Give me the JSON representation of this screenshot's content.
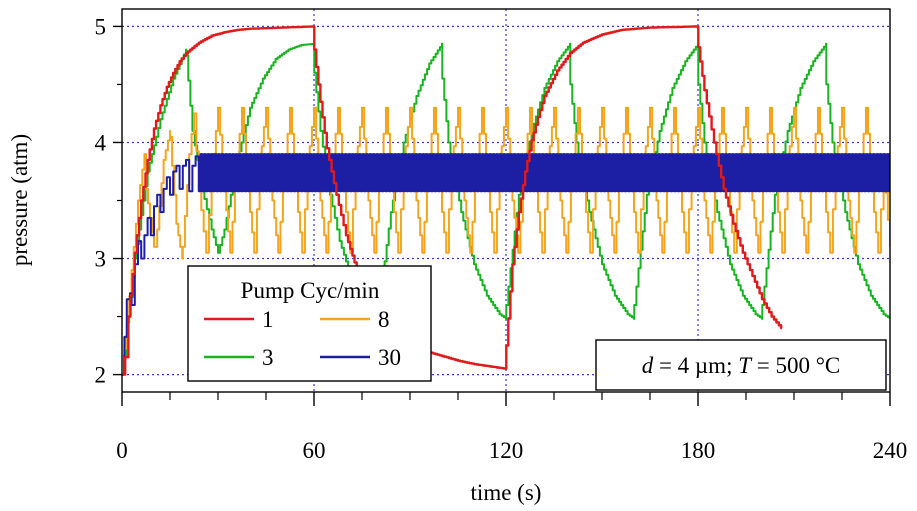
{
  "chart_data": {
    "type": "line",
    "xlabel": "time (s)",
    "ylabel": "pressure (atm)",
    "xlim": [
      0,
      240
    ],
    "ylim": [
      1.85,
      5.15
    ],
    "x_ticks": [
      "0",
      "60",
      "120",
      "180",
      "240"
    ],
    "x_tick_values": [
      0,
      60,
      120,
      180,
      240
    ],
    "y_ticks": [
      "2",
      "3",
      "4",
      "5"
    ],
    "y_tick_values": [
      2,
      3,
      4,
      5
    ],
    "grid": "dotted",
    "legend": {
      "title": "Pump Cyc/min",
      "placement": "bottom-left"
    },
    "annotation": {
      "d_var": "d",
      "d_val": " = 4 µm; ",
      "t_var": "T",
      "t_val": " = 500 °C"
    },
    "series": [
      {
        "name": "1",
        "color": "#e0191b",
        "points": [
          [
            0,
            2.0
          ],
          [
            1,
            2.15
          ],
          [
            2,
            2.5
          ],
          [
            4,
            3.05
          ],
          [
            6,
            3.5
          ],
          [
            8,
            3.85
          ],
          [
            10,
            4.12
          ],
          [
            12,
            4.32
          ],
          [
            14,
            4.48
          ],
          [
            16,
            4.6
          ],
          [
            18,
            4.7
          ],
          [
            20,
            4.77
          ],
          [
            24,
            4.86
          ],
          [
            28,
            4.92
          ],
          [
            32,
            4.95
          ],
          [
            36,
            4.97
          ],
          [
            40,
            4.98
          ],
          [
            50,
            4.99
          ],
          [
            60,
            5.0
          ],
          [
            60.1,
            4.8
          ],
          [
            62,
            4.35
          ],
          [
            64,
            3.95
          ],
          [
            67,
            3.55
          ],
          [
            70,
            3.2
          ],
          [
            74,
            2.85
          ],
          [
            78,
            2.6
          ],
          [
            82,
            2.43
          ],
          [
            86,
            2.33
          ],
          [
            90,
            2.26
          ],
          [
            95,
            2.2
          ],
          [
            100,
            2.16
          ],
          [
            105,
            2.12
          ],
          [
            110,
            2.09
          ],
          [
            115,
            2.07
          ],
          [
            119.9,
            2.05
          ],
          [
            120,
            2.05
          ],
          [
            120.1,
            2.25
          ],
          [
            122,
            2.95
          ],
          [
            124,
            3.4
          ],
          [
            126,
            3.75
          ],
          [
            128,
            4.02
          ],
          [
            130,
            4.22
          ],
          [
            132,
            4.4
          ],
          [
            136,
            4.62
          ],
          [
            140,
            4.77
          ],
          [
            144,
            4.86
          ],
          [
            150,
            4.93
          ],
          [
            156,
            4.97
          ],
          [
            165,
            4.99
          ],
          [
            180,
            5.0
          ],
          [
            180.1,
            4.82
          ],
          [
            182,
            4.45
          ],
          [
            185,
            4.0
          ],
          [
            188,
            3.6
          ],
          [
            191,
            3.3
          ],
          [
            194,
            3.05
          ],
          [
            197,
            2.85
          ],
          [
            200,
            2.65
          ],
          [
            203,
            2.5
          ],
          [
            206,
            2.4
          ],
          [
            206.2,
            2.4
          ]
        ]
      },
      {
        "name": "3",
        "color": "#18b31f",
        "points": [
          [
            0,
            2.0
          ],
          [
            4,
            3.0
          ],
          [
            8,
            3.75
          ],
          [
            12,
            4.2
          ],
          [
            16,
            4.55
          ],
          [
            20,
            4.8
          ],
          [
            20.1,
            4.75
          ],
          [
            22,
            4.1
          ],
          [
            25,
            3.6
          ],
          [
            28,
            3.25
          ],
          [
            30,
            3.05
          ],
          [
            32,
            3.25
          ],
          [
            36,
            3.85
          ],
          [
            40,
            4.3
          ],
          [
            44,
            4.55
          ],
          [
            48,
            4.72
          ],
          [
            52,
            4.8
          ],
          [
            56,
            4.84
          ],
          [
            60,
            4.85
          ],
          [
            60.1,
            4.6
          ],
          [
            62,
            4.1
          ],
          [
            65,
            3.55
          ],
          [
            68,
            3.15
          ],
          [
            72,
            2.8
          ],
          [
            76,
            2.55
          ],
          [
            80,
            2.45
          ],
          [
            80.1,
            2.55
          ],
          [
            84,
            3.4
          ],
          [
            88,
            4.0
          ],
          [
            92,
            4.4
          ],
          [
            96,
            4.68
          ],
          [
            100,
            4.85
          ],
          [
            100.1,
            4.55
          ],
          [
            102,
            4.0
          ],
          [
            106,
            3.4
          ],
          [
            110,
            2.95
          ],
          [
            114,
            2.68
          ],
          [
            118,
            2.52
          ],
          [
            120,
            2.48
          ],
          [
            120.1,
            2.6
          ],
          [
            124,
            3.55
          ],
          [
            128,
            4.1
          ],
          [
            132,
            4.47
          ],
          [
            136,
            4.7
          ],
          [
            140,
            4.85
          ],
          [
            140.1,
            4.5
          ],
          [
            142,
            4.0
          ],
          [
            146,
            3.4
          ],
          [
            150,
            2.95
          ],
          [
            154,
            2.68
          ],
          [
            158,
            2.52
          ],
          [
            160,
            2.48
          ],
          [
            160.1,
            2.6
          ],
          [
            164,
            3.55
          ],
          [
            168,
            4.1
          ],
          [
            172,
            4.47
          ],
          [
            176,
            4.7
          ],
          [
            180,
            4.85
          ],
          [
            180.1,
            4.5
          ],
          [
            182,
            4.0
          ],
          [
            186,
            3.4
          ],
          [
            190,
            2.95
          ],
          [
            194,
            2.68
          ],
          [
            198,
            2.52
          ],
          [
            200,
            2.48
          ],
          [
            200.1,
            2.6
          ],
          [
            204,
            3.55
          ],
          [
            208,
            4.1
          ],
          [
            212,
            4.47
          ],
          [
            216,
            4.7
          ],
          [
            220,
            4.85
          ],
          [
            220.1,
            4.5
          ],
          [
            222,
            4.0
          ],
          [
            226,
            3.4
          ],
          [
            230,
            2.95
          ],
          [
            234,
            2.68
          ],
          [
            238,
            2.52
          ],
          [
            240,
            2.48
          ]
        ]
      },
      {
        "name": "8",
        "color": "#f2a51e",
        "points": [
          [
            0,
            2.0
          ],
          [
            3,
            2.9
          ],
          [
            5,
            3.5
          ],
          [
            7,
            3.9
          ],
          [
            7.5,
            3.6
          ],
          [
            10,
            3.1
          ],
          [
            11,
            3.25
          ],
          [
            13,
            3.85
          ],
          [
            15,
            4.1
          ],
          [
            15,
            4.05
          ],
          [
            17,
            3.3
          ],
          [
            18.8,
            3.0
          ],
          [
            19,
            3.1
          ],
          [
            21,
            3.9
          ],
          [
            22.5,
            4.25
          ],
          [
            24,
            3.6
          ],
          [
            26.3,
            3.05
          ],
          [
            28,
            3.7
          ],
          [
            30,
            4.3
          ],
          [
            32,
            3.6
          ],
          [
            33.8,
            3.05
          ],
          [
            36,
            3.85
          ],
          [
            37.5,
            4.3
          ],
          [
            40,
            3.4
          ],
          [
            41.3,
            3.05
          ],
          [
            43,
            3.8
          ],
          [
            45,
            4.3
          ],
          [
            47,
            3.5
          ],
          [
            48.8,
            3.05
          ],
          [
            51,
            3.85
          ],
          [
            52.5,
            4.3
          ],
          [
            55,
            3.4
          ],
          [
            56.3,
            3.05
          ],
          [
            58,
            3.8
          ],
          [
            60,
            4.3
          ],
          [
            62,
            3.5
          ],
          [
            63.8,
            3.05
          ],
          [
            66,
            3.85
          ],
          [
            67.5,
            4.3
          ],
          [
            70,
            3.4
          ],
          [
            71.3,
            3.05
          ],
          [
            73,
            3.8
          ],
          [
            75,
            4.3
          ],
          [
            77,
            3.5
          ],
          [
            78.8,
            3.05
          ],
          [
            81,
            3.85
          ],
          [
            82.5,
            4.3
          ],
          [
            85,
            3.4
          ],
          [
            86.3,
            3.05
          ],
          [
            88,
            3.8
          ],
          [
            90,
            4.3
          ],
          [
            92,
            3.5
          ],
          [
            93.8,
            3.05
          ],
          [
            96,
            3.85
          ],
          [
            97.5,
            4.3
          ],
          [
            100,
            3.4
          ],
          [
            101.3,
            3.05
          ],
          [
            103,
            3.8
          ],
          [
            105,
            4.3
          ],
          [
            107,
            3.5
          ],
          [
            108.8,
            3.05
          ],
          [
            111,
            3.85
          ],
          [
            112.5,
            4.3
          ],
          [
            115,
            3.4
          ],
          [
            116.3,
            3.05
          ],
          [
            118,
            3.8
          ],
          [
            120,
            4.3
          ],
          [
            122,
            3.5
          ],
          [
            123.8,
            3.05
          ],
          [
            126,
            3.85
          ],
          [
            127.5,
            4.3
          ],
          [
            130,
            3.4
          ],
          [
            131.3,
            3.05
          ],
          [
            133,
            3.8
          ],
          [
            135,
            4.3
          ],
          [
            137,
            3.5
          ],
          [
            138.8,
            3.05
          ],
          [
            141,
            3.85
          ],
          [
            142.5,
            4.3
          ],
          [
            145,
            3.4
          ],
          [
            146.3,
            3.05
          ],
          [
            148,
            3.8
          ],
          [
            150,
            4.3
          ],
          [
            152,
            3.5
          ],
          [
            153.8,
            3.05
          ],
          [
            156,
            3.85
          ],
          [
            157.5,
            4.3
          ],
          [
            160,
            3.4
          ],
          [
            161.3,
            3.05
          ],
          [
            163,
            3.8
          ],
          [
            165,
            4.3
          ],
          [
            167,
            3.5
          ],
          [
            168.8,
            3.05
          ],
          [
            171,
            3.85
          ],
          [
            172.5,
            4.3
          ],
          [
            175,
            3.4
          ],
          [
            176.3,
            3.05
          ],
          [
            178,
            3.8
          ],
          [
            180,
            4.3
          ],
          [
            182,
            3.5
          ],
          [
            183.8,
            3.05
          ],
          [
            186,
            3.85
          ],
          [
            187.5,
            4.3
          ],
          [
            190,
            3.4
          ],
          [
            191.3,
            3.05
          ],
          [
            193,
            3.8
          ],
          [
            195,
            4.3
          ],
          [
            197,
            3.5
          ],
          [
            198.8,
            3.05
          ],
          [
            201,
            3.85
          ],
          [
            202.5,
            4.3
          ],
          [
            205,
            3.4
          ],
          [
            206.3,
            3.05
          ],
          [
            208,
            3.8
          ],
          [
            210,
            4.3
          ],
          [
            212,
            3.5
          ],
          [
            213.8,
            3.05
          ],
          [
            216,
            3.85
          ],
          [
            217.5,
            4.3
          ],
          [
            220,
            3.4
          ],
          [
            221.3,
            3.05
          ],
          [
            223,
            3.8
          ],
          [
            225,
            4.3
          ],
          [
            227,
            3.5
          ],
          [
            228.8,
            3.05
          ],
          [
            231,
            3.85
          ],
          [
            232.5,
            4.3
          ],
          [
            235,
            3.4
          ],
          [
            236.3,
            3.05
          ],
          [
            238,
            3.8
          ],
          [
            240,
            3.1
          ]
        ]
      },
      {
        "name": "30",
        "color": "#1c1fa3",
        "points": [
          [
            0,
            2.0
          ],
          [
            1.5,
            2.65
          ],
          [
            2.5,
            2.7
          ],
          [
            3,
            2.6
          ],
          [
            4,
            2.95
          ],
          [
            5,
            3.15
          ],
          [
            6,
            3.0
          ],
          [
            7,
            3.2
          ],
          [
            8,
            3.35
          ],
          [
            9,
            3.2
          ],
          [
            10,
            3.45
          ],
          [
            11,
            3.55
          ],
          [
            12,
            3.4
          ],
          [
            13,
            3.6
          ],
          [
            14,
            3.7
          ],
          [
            15,
            3.55
          ],
          [
            16,
            3.75
          ],
          [
            17,
            3.8
          ],
          [
            18,
            3.6
          ],
          [
            19,
            3.8
          ],
          [
            20,
            3.85
          ],
          [
            21,
            3.58
          ],
          [
            22,
            3.8
          ],
          [
            23,
            3.88
          ],
          [
            24,
            3.58
          ]
        ]
      }
    ]
  }
}
